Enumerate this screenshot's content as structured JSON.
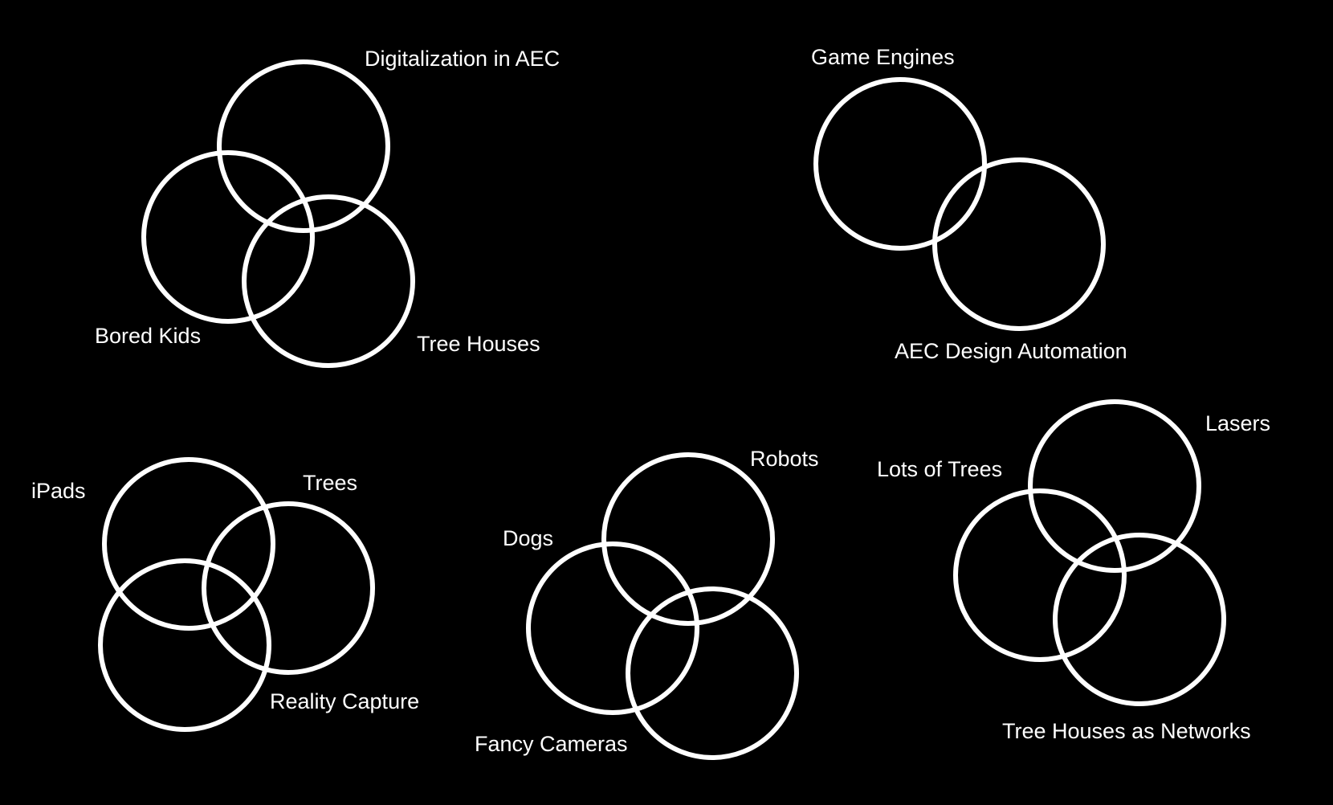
{
  "colors": {
    "background": "#000000",
    "circle_stroke": "#ffffff",
    "label_text": "#ffffff"
  },
  "diagrams": [
    {
      "id": "venn-1",
      "sets": [
        {
          "label": "Digitalization in AEC"
        },
        {
          "label": "Bored Kids"
        },
        {
          "label": "Tree Houses"
        }
      ]
    },
    {
      "id": "venn-2",
      "sets": [
        {
          "label": "Game Engines"
        },
        {
          "label": "AEC Design Automation"
        }
      ]
    },
    {
      "id": "venn-3",
      "sets": [
        {
          "label": "iPads"
        },
        {
          "label": "Trees"
        },
        {
          "label": "Reality Capture"
        }
      ]
    },
    {
      "id": "venn-4",
      "sets": [
        {
          "label": "Robots"
        },
        {
          "label": "Dogs"
        },
        {
          "label": "Fancy Cameras"
        }
      ]
    },
    {
      "id": "venn-5",
      "sets": [
        {
          "label": "Lasers"
        },
        {
          "label": "Lots of Trees"
        },
        {
          "label": "Tree Houses as Networks"
        }
      ]
    }
  ]
}
